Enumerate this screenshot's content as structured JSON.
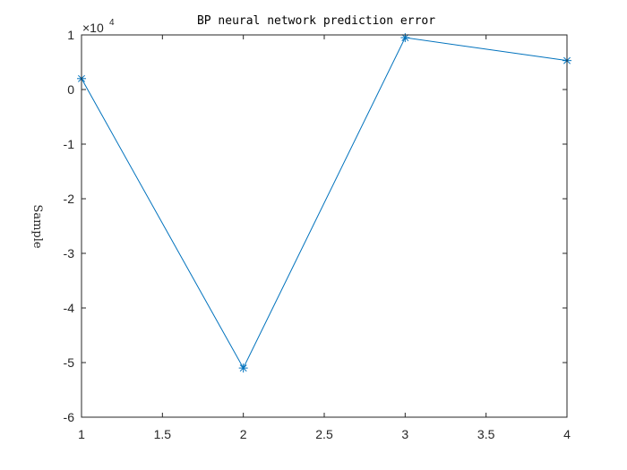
{
  "chart_data": {
    "type": "line",
    "title": "BP neural network prediction error",
    "xlabel": "",
    "ylabel": "Sample",
    "x": [
      1,
      2,
      3,
      4
    ],
    "series": [
      {
        "values": [
          2000,
          -51000,
          9500,
          5300
        ],
        "color": "#0072BD",
        "marker": "asterisk"
      }
    ],
    "xlim": [
      1,
      4
    ],
    "ylim": [
      -60000,
      10000
    ],
    "xticks": [
      1,
      1.5,
      2,
      2.5,
      3,
      3.5,
      4
    ],
    "xtick_labels": [
      "1",
      "1.5",
      "2",
      "2.5",
      "3",
      "3.5",
      "4"
    ],
    "yticks": [
      10000,
      0,
      -10000,
      -20000,
      -30000,
      -40000,
      -50000,
      -60000
    ],
    "ytick_labels": [
      "1",
      "0",
      "-1",
      "-2",
      "-3",
      "-4",
      "-5",
      "-6"
    ],
    "y_multiplier_base": "×10",
    "y_multiplier_exp": "4",
    "grid": false,
    "legend": "none"
  }
}
